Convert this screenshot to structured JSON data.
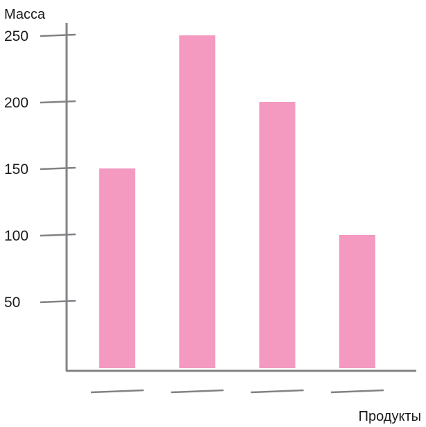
{
  "chart_data": {
    "type": "bar",
    "categories": [
      "",
      "",
      "",
      ""
    ],
    "values": [
      150,
      250,
      200,
      100
    ],
    "title": "",
    "xlabel": "Продукты",
    "ylabel": "Масса",
    "ylim": [
      0,
      250
    ],
    "yticks": [
      50,
      100,
      150,
      200,
      250
    ],
    "ytick_labels": [
      "50",
      "100",
      "150",
      "200",
      "250"
    ],
    "grid": false,
    "legend": "none",
    "colors": {
      "bar": "#f49ac1",
      "axis": "#808285",
      "text": "#1a1a1a"
    }
  }
}
